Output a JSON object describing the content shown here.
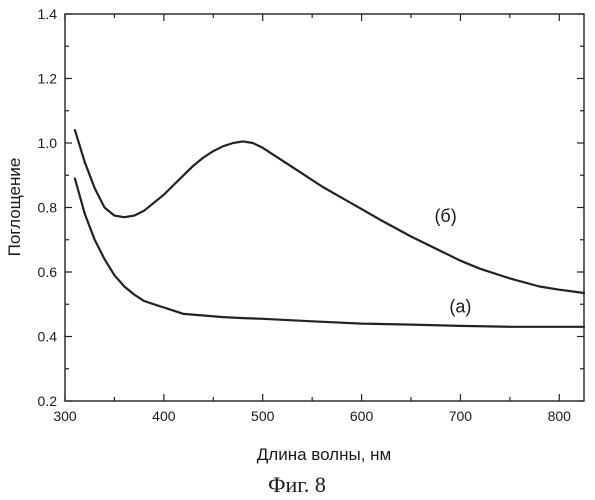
{
  "chart_data": {
    "type": "line",
    "title": "",
    "xlabel": "Длина волны, нм",
    "ylabel": "Поглощение",
    "xlim": [
      300,
      825
    ],
    "ylim": [
      0.2,
      1.4
    ],
    "x_ticks": [
      "300",
      "400",
      "500",
      "600",
      "700",
      "800"
    ],
    "y_ticks": [
      "0.2",
      "0.4",
      "0.6",
      "0.8",
      "1.0",
      "1.2",
      "1.4"
    ],
    "grid": false,
    "series": [
      {
        "name": "(а)",
        "x": [
          310,
          320,
          330,
          340,
          350,
          360,
          370,
          380,
          390,
          400,
          410,
          420,
          440,
          460,
          480,
          500,
          550,
          600,
          650,
          700,
          750,
          800,
          825
        ],
        "y": [
          0.89,
          0.78,
          0.7,
          0.64,
          0.59,
          0.555,
          0.53,
          0.51,
          0.5,
          0.49,
          0.48,
          0.47,
          0.465,
          0.46,
          0.457,
          0.455,
          0.447,
          0.44,
          0.437,
          0.433,
          0.43,
          0.43,
          0.43
        ]
      },
      {
        "name": "(б)",
        "x": [
          310,
          320,
          330,
          340,
          350,
          360,
          370,
          380,
          390,
          400,
          410,
          420,
          430,
          440,
          450,
          460,
          470,
          480,
          490,
          500,
          520,
          540,
          560,
          580,
          600,
          620,
          650,
          680,
          700,
          720,
          750,
          780,
          800,
          825
        ],
        "y": [
          1.04,
          0.94,
          0.86,
          0.8,
          0.775,
          0.77,
          0.775,
          0.79,
          0.815,
          0.84,
          0.87,
          0.9,
          0.93,
          0.955,
          0.975,
          0.99,
          1.0,
          1.005,
          1.0,
          0.985,
          0.945,
          0.905,
          0.865,
          0.83,
          0.795,
          0.76,
          0.71,
          0.665,
          0.635,
          0.61,
          0.58,
          0.555,
          0.545,
          0.535
        ]
      }
    ]
  },
  "caption": "Фиг. 8"
}
